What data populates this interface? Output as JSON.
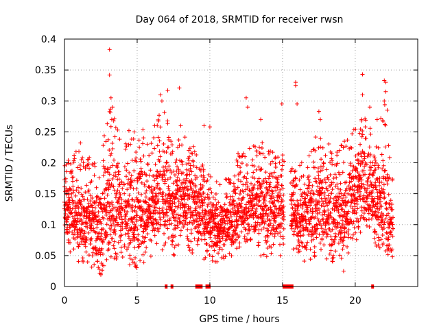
{
  "chart_data": {
    "type": "scatter",
    "title": "Day 064 of 2018, SRMTID for receiver rwsn",
    "xlabel": "GPS time / hours",
    "ylabel": "SRMTID / TECUs",
    "xlim": [
      0,
      24.3
    ],
    "ylim": [
      0,
      0.4
    ],
    "x_ticks": [
      0,
      5,
      10,
      15,
      20
    ],
    "x_tick_labels": [
      "0",
      "5",
      "10",
      "15",
      "20"
    ],
    "y_ticks": [
      0,
      0.05,
      0.1,
      0.15,
      0.2,
      0.25,
      0.3,
      0.35,
      0.4
    ],
    "y_tick_labels": [
      "0",
      "0.05",
      "0.1",
      "0.15",
      "0.2",
      "0.25",
      "0.3",
      "0.35",
      "0.4"
    ],
    "grid": true,
    "marker": "+",
    "color": "#ff0000",
    "envelope": [
      {
        "x": 0.0,
        "lo": 0.06,
        "hi": 0.21,
        "mid": 0.13
      },
      {
        "x": 1.0,
        "lo": 0.04,
        "hi": 0.22,
        "mid": 0.11
      },
      {
        "x": 2.0,
        "lo": 0.03,
        "hi": 0.21,
        "mid": 0.1
      },
      {
        "x": 2.5,
        "lo": 0.02,
        "hi": 0.2,
        "mid": 0.09
      },
      {
        "x": 3.0,
        "lo": 0.05,
        "hi": 0.3,
        "mid": 0.14
      },
      {
        "x": 4.0,
        "lo": 0.04,
        "hi": 0.24,
        "mid": 0.12
      },
      {
        "x": 5.0,
        "lo": 0.03,
        "hi": 0.27,
        "mid": 0.12
      },
      {
        "x": 6.0,
        "lo": 0.05,
        "hi": 0.24,
        "mid": 0.13
      },
      {
        "x": 6.8,
        "lo": 0.06,
        "hi": 0.3,
        "mid": 0.16
      },
      {
        "x": 7.5,
        "lo": 0.05,
        "hi": 0.22,
        "mid": 0.12
      },
      {
        "x": 8.2,
        "lo": 0.06,
        "hi": 0.26,
        "mid": 0.15
      },
      {
        "x": 9.0,
        "lo": 0.05,
        "hi": 0.22,
        "mid": 0.13
      },
      {
        "x": 10.0,
        "lo": 0.04,
        "hi": 0.18,
        "mid": 0.1
      },
      {
        "x": 11.0,
        "lo": 0.04,
        "hi": 0.17,
        "mid": 0.09
      },
      {
        "x": 12.0,
        "lo": 0.05,
        "hi": 0.22,
        "mid": 0.12
      },
      {
        "x": 13.0,
        "lo": 0.06,
        "hi": 0.24,
        "mid": 0.13
      },
      {
        "x": 14.0,
        "lo": 0.04,
        "hi": 0.23,
        "mid": 0.12
      },
      {
        "x": 14.8,
        "lo": 0.04,
        "hi": 0.22,
        "mid": 0.13
      },
      {
        "x": 15.7,
        "lo": 0.06,
        "hi": 0.19,
        "mid": 0.12
      },
      {
        "x": 16.5,
        "lo": 0.04,
        "hi": 0.21,
        "mid": 0.11
      },
      {
        "x": 17.5,
        "lo": 0.05,
        "hi": 0.26,
        "mid": 0.14
      },
      {
        "x": 18.5,
        "lo": 0.04,
        "hi": 0.22,
        "mid": 0.11
      },
      {
        "x": 19.5,
        "lo": 0.05,
        "hi": 0.24,
        "mid": 0.13
      },
      {
        "x": 20.5,
        "lo": 0.08,
        "hi": 0.28,
        "mid": 0.18
      },
      {
        "x": 21.3,
        "lo": 0.07,
        "hi": 0.26,
        "mid": 0.15
      },
      {
        "x": 22.0,
        "lo": 0.05,
        "hi": 0.3,
        "mid": 0.13
      },
      {
        "x": 22.6,
        "lo": 0.04,
        "hi": 0.17,
        "mid": 0.09
      }
    ],
    "gaps": [
      [
        4.0,
        4.1
      ],
      [
        6.62,
        6.7
      ],
      [
        15.1,
        15.55
      ]
    ],
    "sample_step_hours": 0.0167,
    "outliers": [
      {
        "x": 3.1,
        "y": 0.383
      },
      {
        "x": 3.1,
        "y": 0.342
      },
      {
        "x": 3.2,
        "y": 0.305
      },
      {
        "x": 3.3,
        "y": 0.29
      },
      {
        "x": 3.25,
        "y": 0.27
      },
      {
        "x": 6.6,
        "y": 0.31
      },
      {
        "x": 6.7,
        "y": 0.3
      },
      {
        "x": 7.1,
        "y": 0.317
      },
      {
        "x": 7.9,
        "y": 0.321
      },
      {
        "x": 8.0,
        "y": 0.26
      },
      {
        "x": 12.5,
        "y": 0.305
      },
      {
        "x": 12.6,
        "y": 0.29
      },
      {
        "x": 13.5,
        "y": 0.27
      },
      {
        "x": 14.95,
        "y": 0.295
      },
      {
        "x": 15.9,
        "y": 0.33
      },
      {
        "x": 15.9,
        "y": 0.325
      },
      {
        "x": 16.0,
        "y": 0.295
      },
      {
        "x": 17.5,
        "y": 0.283
      },
      {
        "x": 17.6,
        "y": 0.27
      },
      {
        "x": 20.5,
        "y": 0.343
      },
      {
        "x": 20.5,
        "y": 0.31
      },
      {
        "x": 21.0,
        "y": 0.29
      },
      {
        "x": 22.0,
        "y": 0.333
      },
      {
        "x": 22.1,
        "y": 0.33
      },
      {
        "x": 22.1,
        "y": 0.315
      },
      {
        "x": 22.0,
        "y": 0.3
      },
      {
        "x": 22.2,
        "y": 0.285
      },
      {
        "x": 1.1,
        "y": 0.232
      },
      {
        "x": 19.2,
        "y": 0.025
      },
      {
        "x": 2.5,
        "y": 0.019
      },
      {
        "x": 6.2,
        "y": 0.26
      },
      {
        "x": 9.6,
        "y": 0.26
      },
      {
        "x": 10.0,
        "y": 0.258
      }
    ],
    "zero_segments": [
      [
        6.9,
        7.05
      ],
      [
        7.3,
        7.45
      ],
      [
        9.0,
        9.5
      ],
      [
        9.7,
        10.05
      ],
      [
        15.0,
        15.75
      ],
      [
        21.1,
        21.25
      ]
    ]
  }
}
